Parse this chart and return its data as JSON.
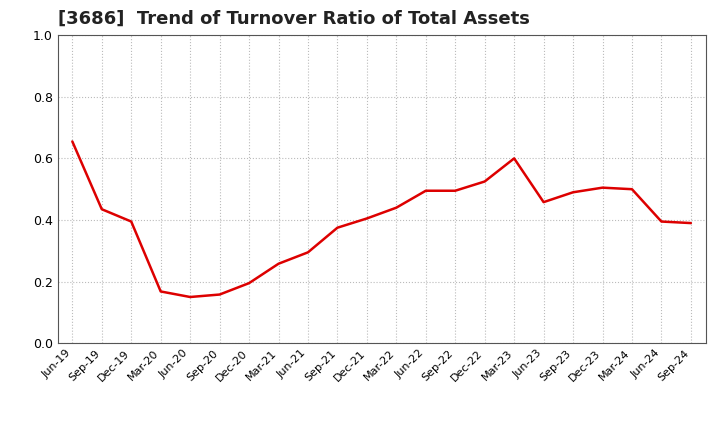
{
  "title": "[3686]  Trend of Turnover Ratio of Total Assets",
  "title_fontsize": 13,
  "line_color": "#dd0000",
  "background_color": "#ffffff",
  "grid_color": "#bbbbbb",
  "ylim": [
    0.0,
    1.0
  ],
  "yticks": [
    0.0,
    0.2,
    0.4,
    0.6,
    0.8,
    1.0
  ],
  "x_labels": [
    "Jun-19",
    "Sep-19",
    "Dec-19",
    "Mar-20",
    "Jun-20",
    "Sep-20",
    "Dec-20",
    "Mar-21",
    "Jun-21",
    "Sep-21",
    "Dec-21",
    "Mar-22",
    "Jun-22",
    "Sep-22",
    "Dec-22",
    "Mar-23",
    "Jun-23",
    "Sep-23",
    "Dec-23",
    "Mar-24",
    "Jun-24",
    "Sep-24"
  ],
  "y_values": [
    0.655,
    0.435,
    0.395,
    0.168,
    0.15,
    0.158,
    0.195,
    0.258,
    0.295,
    0.375,
    0.405,
    0.44,
    0.495,
    0.495,
    0.525,
    0.6,
    0.458,
    0.49,
    0.505,
    0.5,
    0.395,
    0.39
  ]
}
